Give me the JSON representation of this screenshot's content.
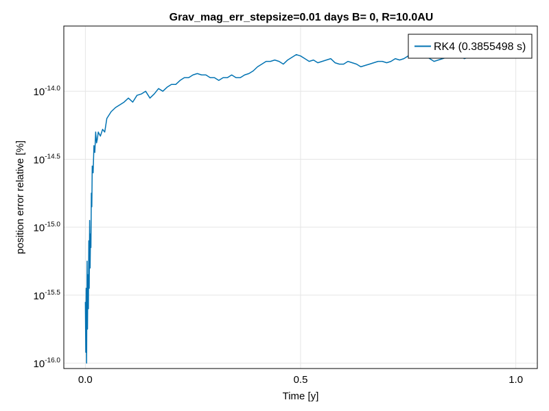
{
  "chart_data": {
    "type": "line",
    "title": "Grav_mag_err_stepsize=0.01 days B= 0, R=10.0AU",
    "xlabel": "Time [y]",
    "ylabel": "position error relative [%]",
    "xlim": [
      -0.05,
      1.05
    ],
    "ylim_log10": [
      -16.04,
      -13.52
    ],
    "y_scale": "log10",
    "grid": true,
    "legend_position": "top-right",
    "x_ticks": [
      {
        "value": 0.0,
        "label": "0.0"
      },
      {
        "value": 0.5,
        "label": "0.5"
      },
      {
        "value": 1.0,
        "label": "1.0"
      }
    ],
    "y_ticks": [
      {
        "value": -16.0,
        "base": "10",
        "exp": "-16.0"
      },
      {
        "value": -15.5,
        "base": "10",
        "exp": "-15.5"
      },
      {
        "value": -15.0,
        "base": "10",
        "exp": "-15.0"
      },
      {
        "value": -14.5,
        "base": "10",
        "exp": "-14.5"
      },
      {
        "value": -14.0,
        "base": "10",
        "exp": "-14.0"
      }
    ],
    "series": [
      {
        "name": "RK4 (0.3855498 s)",
        "color": "#0072b2",
        "x": [
          0.0,
          0.001,
          0.002,
          0.003,
          0.004,
          0.005,
          0.006,
          0.007,
          0.008,
          0.009,
          0.01,
          0.011,
          0.012,
          0.013,
          0.014,
          0.015,
          0.016,
          0.018,
          0.02,
          0.022,
          0.024,
          0.026,
          0.028,
          0.03,
          0.035,
          0.04,
          0.045,
          0.05,
          0.06,
          0.07,
          0.08,
          0.09,
          0.1,
          0.11,
          0.12,
          0.13,
          0.14,
          0.15,
          0.16,
          0.17,
          0.18,
          0.19,
          0.2,
          0.21,
          0.22,
          0.23,
          0.24,
          0.25,
          0.26,
          0.27,
          0.28,
          0.29,
          0.3,
          0.31,
          0.32,
          0.33,
          0.34,
          0.35,
          0.36,
          0.37,
          0.38,
          0.39,
          0.4,
          0.41,
          0.42,
          0.43,
          0.44,
          0.45,
          0.46,
          0.47,
          0.48,
          0.49,
          0.5,
          0.51,
          0.52,
          0.53,
          0.54,
          0.55,
          0.56,
          0.57,
          0.58,
          0.59,
          0.6,
          0.61,
          0.62,
          0.63,
          0.64,
          0.65,
          0.66,
          0.67,
          0.68,
          0.69,
          0.7,
          0.71,
          0.72,
          0.73,
          0.74,
          0.75,
          0.76,
          0.77,
          0.78,
          0.79,
          0.8,
          0.81,
          0.82,
          0.83,
          0.84,
          0.85,
          0.86,
          0.87,
          0.88,
          0.89,
          0.9
        ],
        "y_log10": [
          -15.55,
          -15.92,
          -15.45,
          -16.0,
          -15.25,
          -15.75,
          -15.35,
          -15.6,
          -15.1,
          -15.45,
          -14.95,
          -15.3,
          -15.05,
          -15.15,
          -14.75,
          -14.85,
          -14.55,
          -14.6,
          -14.4,
          -14.45,
          -14.3,
          -14.38,
          -14.35,
          -14.3,
          -14.33,
          -14.28,
          -14.3,
          -14.2,
          -14.15,
          -14.12,
          -14.1,
          -14.08,
          -14.05,
          -14.08,
          -14.03,
          -14.02,
          -14.0,
          -14.05,
          -14.02,
          -13.98,
          -14.0,
          -13.97,
          -13.95,
          -13.95,
          -13.92,
          -13.9,
          -13.9,
          -13.88,
          -13.87,
          -13.88,
          -13.88,
          -13.9,
          -13.9,
          -13.92,
          -13.9,
          -13.9,
          -13.88,
          -13.9,
          -13.9,
          -13.88,
          -13.87,
          -13.85,
          -13.82,
          -13.8,
          -13.78,
          -13.78,
          -13.77,
          -13.78,
          -13.8,
          -13.77,
          -13.75,
          -13.73,
          -13.74,
          -13.76,
          -13.78,
          -13.77,
          -13.79,
          -13.78,
          -13.77,
          -13.76,
          -13.79,
          -13.8,
          -13.8,
          -13.78,
          -13.79,
          -13.8,
          -13.82,
          -13.81,
          -13.8,
          -13.79,
          -13.78,
          -13.78,
          -13.79,
          -13.78,
          -13.76,
          -13.77,
          -13.76,
          -13.74,
          -13.73,
          -13.74,
          -13.73,
          -13.74,
          -13.76,
          -13.78,
          -13.77,
          -13.76,
          -13.75,
          -13.74,
          -13.75,
          -13.73,
          -13.76,
          -13.75,
          -13.74
        ]
      }
    ]
  }
}
